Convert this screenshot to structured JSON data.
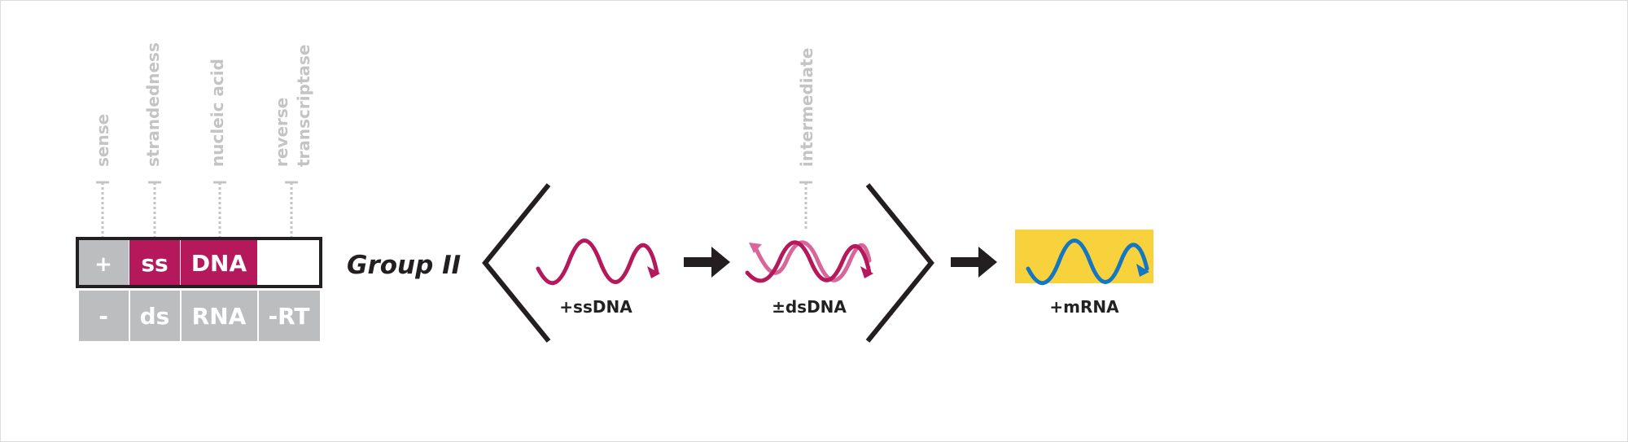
{
  "colors": {
    "magenta": "#b5195b",
    "magenta_light": "#d9669a",
    "grey": "#bcbdbf",
    "dark": "#231f20",
    "blue": "#1377c4",
    "yellow": "#f8d23c",
    "label_grey": "#c4c4c4"
  },
  "legend": {
    "categories": {
      "sense": "sense",
      "strandedness": "strandedness",
      "nucleic_acid": "nucleic acid",
      "rt_line1": "reverse",
      "rt_line2": "transcriptase"
    },
    "selected": {
      "sense": "+",
      "strandedness": "ss",
      "nucleic_acid": "DNA",
      "rt": ""
    },
    "alternatives": {
      "sense": "-",
      "strandedness": "ds",
      "nucleic_acid": "RNA",
      "rt": "-RT"
    }
  },
  "group_label": "Group II",
  "pathway": {
    "stage1": {
      "label": "+ssDNA",
      "icon": "single-strand-wave"
    },
    "stage2": {
      "label": "±dsDNA",
      "icon": "double-strand-wave",
      "annotation": "intermediate"
    },
    "stage3": {
      "label": "+mRNA",
      "icon": "mrna-wave"
    }
  }
}
